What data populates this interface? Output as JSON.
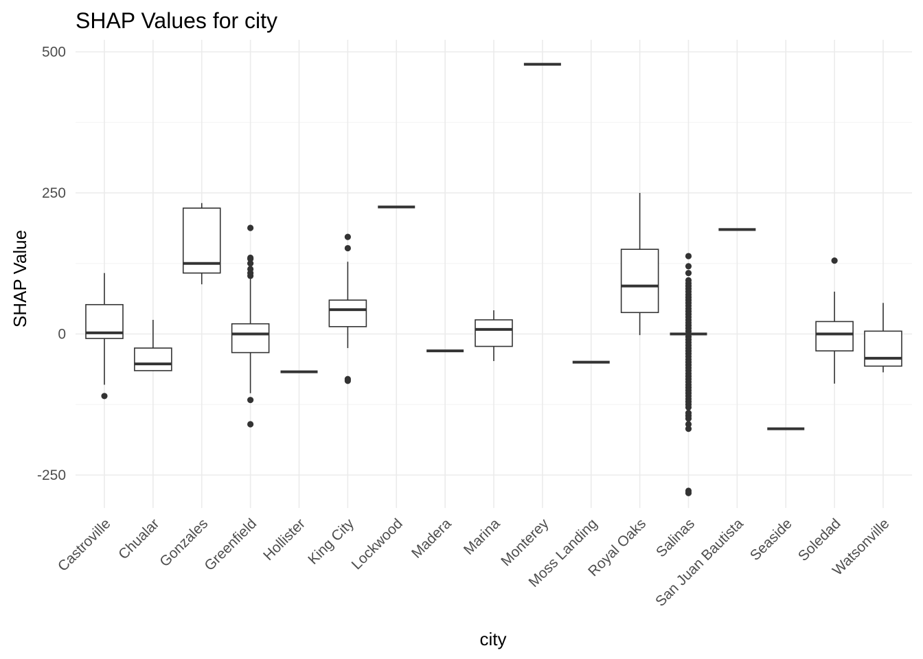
{
  "chart_data": {
    "type": "boxplot",
    "title": "SHAP Values for city",
    "xlabel": "city",
    "ylabel": "SHAP Value",
    "ylim": [
      -290,
      515
    ],
    "yticks": [
      -250,
      0,
      250,
      500
    ],
    "grid": true,
    "legend": "none",
    "colors": {
      "box_line": "#333333",
      "grid": "#ebebeb",
      "tick_text": "#4d4d4d"
    },
    "categories": [
      "Castroville",
      "Chualar",
      "Gonzales",
      "Greenfield",
      "Hollister",
      "King City",
      "Lockwood",
      "Madera",
      "Marina",
      "Monterey",
      "Moss Landing",
      "Royal Oaks",
      "Salinas",
      "San Juan Bautista",
      "Seaside",
      "Soledad",
      "Watsonville"
    ],
    "boxes": [
      {
        "city": "Castroville",
        "min": -90,
        "q1": -8,
        "median": 2,
        "q3": 52,
        "max": 108,
        "outliers": [
          -110
        ]
      },
      {
        "city": "Chualar",
        "min": -65,
        "q1": -65,
        "median": -53,
        "q3": -25,
        "max": 25,
        "outliers": []
      },
      {
        "city": "Gonzales",
        "min": 88,
        "q1": 108,
        "median": 125,
        "q3": 223,
        "max": 232,
        "outliers": []
      },
      {
        "city": "Greenfield",
        "min": -105,
        "q1": -33,
        "median": 0,
        "q3": 18,
        "max": 100,
        "outliers": [
          103,
          108,
          115,
          125,
          133,
          135,
          188,
          -117,
          -160
        ]
      },
      {
        "city": "Hollister",
        "min": -67,
        "q1": -67,
        "median": -67,
        "q3": -67,
        "max": -67,
        "outliers": []
      },
      {
        "city": "King City",
        "min": -25,
        "q1": 13,
        "median": 43,
        "q3": 60,
        "max": 128,
        "outliers": [
          152,
          172,
          -80,
          -83
        ]
      },
      {
        "city": "Lockwood",
        "min": 225,
        "q1": 225,
        "median": 225,
        "q3": 225,
        "max": 225,
        "outliers": []
      },
      {
        "city": "Madera",
        "min": -30,
        "q1": -30,
        "median": -30,
        "q3": -30,
        "max": -30,
        "outliers": []
      },
      {
        "city": "Marina",
        "min": -48,
        "q1": -22,
        "median": 8,
        "q3": 25,
        "max": 42,
        "outliers": []
      },
      {
        "city": "Monterey",
        "min": 478,
        "q1": 478,
        "median": 478,
        "q3": 478,
        "max": 478,
        "outliers": []
      },
      {
        "city": "Moss Landing",
        "min": -50,
        "q1": -50,
        "median": -50,
        "q3": -50,
        "max": -50,
        "outliers": []
      },
      {
        "city": "Royal Oaks",
        "min": -2,
        "q1": 38,
        "median": 85,
        "q3": 150,
        "max": 250,
        "outliers": []
      },
      {
        "city": "Salinas",
        "min": 0,
        "q1": 0,
        "median": 0,
        "q3": 0,
        "max": 0,
        "outliers": [
          138,
          120,
          108,
          95,
          90,
          85,
          80,
          75,
          70,
          65,
          60,
          55,
          50,
          45,
          40,
          35,
          30,
          25,
          20,
          15,
          10,
          5,
          -5,
          -10,
          -15,
          -20,
          -25,
          -30,
          -35,
          -40,
          -45,
          -50,
          -55,
          -60,
          -65,
          -70,
          -75,
          -80,
          -85,
          -90,
          -95,
          -100,
          -105,
          -110,
          -115,
          -120,
          -125,
          -130,
          -140,
          -145,
          -150,
          -160,
          -168,
          -278,
          -282
        ]
      },
      {
        "city": "San Juan Bautista",
        "min": 185,
        "q1": 185,
        "median": 185,
        "q3": 185,
        "max": 185,
        "outliers": []
      },
      {
        "city": "Seaside",
        "min": -168,
        "q1": -168,
        "median": -168,
        "q3": -168,
        "max": -168,
        "outliers": []
      },
      {
        "city": "Soledad",
        "min": -88,
        "q1": -30,
        "median": 0,
        "q3": 22,
        "max": 75,
        "outliers": [
          130
        ]
      },
      {
        "city": "Watsonville",
        "min": -68,
        "q1": -57,
        "median": -43,
        "q3": 5,
        "max": 55,
        "outliers": []
      }
    ]
  }
}
